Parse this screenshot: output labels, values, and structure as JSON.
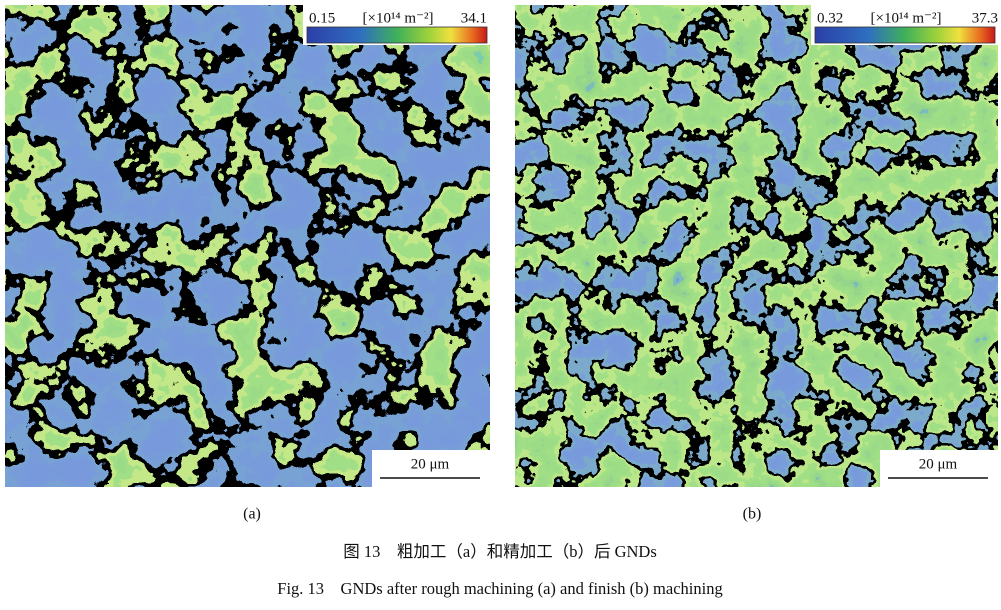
{
  "panels": [
    {
      "label": "(a)",
      "colorbar": {
        "min": "0.15",
        "unit": "[×10¹⁴ m⁻²]",
        "max": "34.1"
      },
      "scale_bar": "20 μm"
    },
    {
      "label": "(b)",
      "colorbar": {
        "min": "0.32",
        "unit": "[×10¹⁴ m⁻²]",
        "max": "37.3"
      },
      "scale_bar": "20 μm"
    }
  ],
  "caption": {
    "zh": "图 13　粗加工（a）和精加工（b）后 GNDs",
    "en": "Fig. 13　GNDs after rough machining (a) and finish (b) machining"
  }
}
